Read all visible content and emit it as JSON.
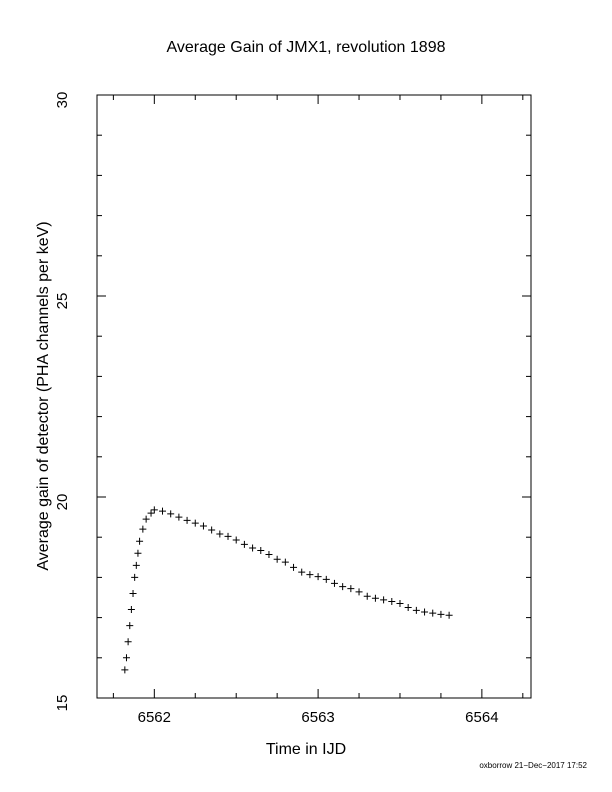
{
  "footer": {
    "credit": "oxborrow 21−Dec−2017 17:52"
  },
  "chart_data": {
    "type": "scatter",
    "title": "Average Gain of JMX1, revolution 1898",
    "xlabel": "Time in IJD",
    "ylabel": "Average gain of detector (PHA channels per keV)",
    "xlim": [
      6561.65,
      6564.3
    ],
    "ylim": [
      15,
      30
    ],
    "x_ticks": [
      6562,
      6563,
      6564
    ],
    "x_tick_labels": [
      "6562",
      "6563",
      "6564"
    ],
    "y_ticks": [
      15,
      20,
      25,
      30
    ],
    "y_tick_labels": [
      "15",
      "20",
      "25",
      "30"
    ],
    "marker": "plus",
    "grid": false,
    "series": [
      {
        "values": [
          [
            6561.82,
            15.7
          ],
          [
            6561.83,
            16.0
          ],
          [
            6561.84,
            16.4
          ],
          [
            6561.85,
            16.8
          ],
          [
            6561.86,
            17.2
          ],
          [
            6561.87,
            17.6
          ],
          [
            6561.88,
            18.0
          ],
          [
            6561.89,
            18.3
          ],
          [
            6561.9,
            18.6
          ],
          [
            6561.91,
            18.9
          ],
          [
            6561.93,
            19.2
          ],
          [
            6561.95,
            19.45
          ],
          [
            6561.98,
            19.6
          ],
          [
            6562.0,
            19.68
          ],
          [
            6562.05,
            19.65
          ],
          [
            6562.1,
            19.58
          ],
          [
            6562.15,
            19.5
          ],
          [
            6562.2,
            19.42
          ],
          [
            6562.25,
            19.35
          ],
          [
            6562.3,
            19.28
          ],
          [
            6562.35,
            19.18
          ],
          [
            6562.4,
            19.08
          ],
          [
            6562.45,
            19.02
          ],
          [
            6562.5,
            18.93
          ],
          [
            6562.55,
            18.82
          ],
          [
            6562.6,
            18.73
          ],
          [
            6562.65,
            18.67
          ],
          [
            6562.7,
            18.57
          ],
          [
            6562.75,
            18.45
          ],
          [
            6562.8,
            18.38
          ],
          [
            6562.85,
            18.25
          ],
          [
            6562.9,
            18.13
          ],
          [
            6562.95,
            18.07
          ],
          [
            6563.0,
            18.02
          ],
          [
            6563.05,
            17.95
          ],
          [
            6563.1,
            17.85
          ],
          [
            6563.15,
            17.77
          ],
          [
            6563.2,
            17.72
          ],
          [
            6563.25,
            17.64
          ],
          [
            6563.3,
            17.53
          ],
          [
            6563.35,
            17.48
          ],
          [
            6563.4,
            17.44
          ],
          [
            6563.45,
            17.4
          ],
          [
            6563.5,
            17.35
          ],
          [
            6563.55,
            17.25
          ],
          [
            6563.6,
            17.18
          ],
          [
            6563.65,
            17.14
          ],
          [
            6563.7,
            17.11
          ],
          [
            6563.75,
            17.08
          ],
          [
            6563.8,
            17.06
          ]
        ]
      }
    ]
  }
}
